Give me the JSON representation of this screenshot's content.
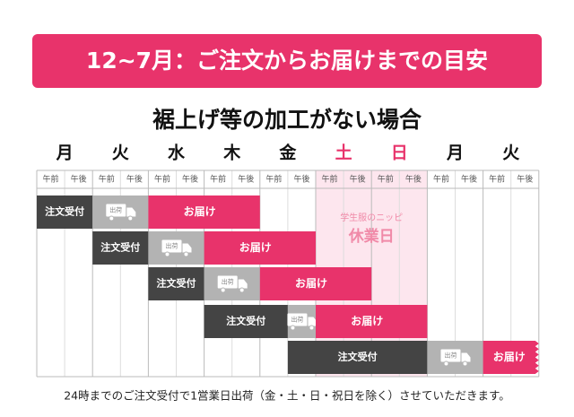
{
  "header": {
    "title": "12~7月：ご注文からお届けまでの目安"
  },
  "subtitle": "裾上げ等の加工がない場合",
  "days": [
    "月",
    "火",
    "水",
    "木",
    "金",
    "土",
    "日",
    "月",
    "火"
  ],
  "halves": [
    "午前",
    "午後"
  ],
  "holiday": {
    "shop": "学生服のニッピ",
    "label": "休業日"
  },
  "rows": [
    [
      "注文受付",
      "出荷",
      "お届け"
    ],
    [
      "注文受付",
      "出荷",
      "お届け"
    ],
    [
      "注文受付",
      "出荷",
      "お届け"
    ],
    [
      "注文受付",
      "出荷",
      "お届け"
    ],
    [
      "注文受付",
      "出荷",
      "お届け"
    ]
  ],
  "footer": "24時までのご注文受付で1営業日出荷（金・土・日・祝日を除く）させていただきます。"
}
